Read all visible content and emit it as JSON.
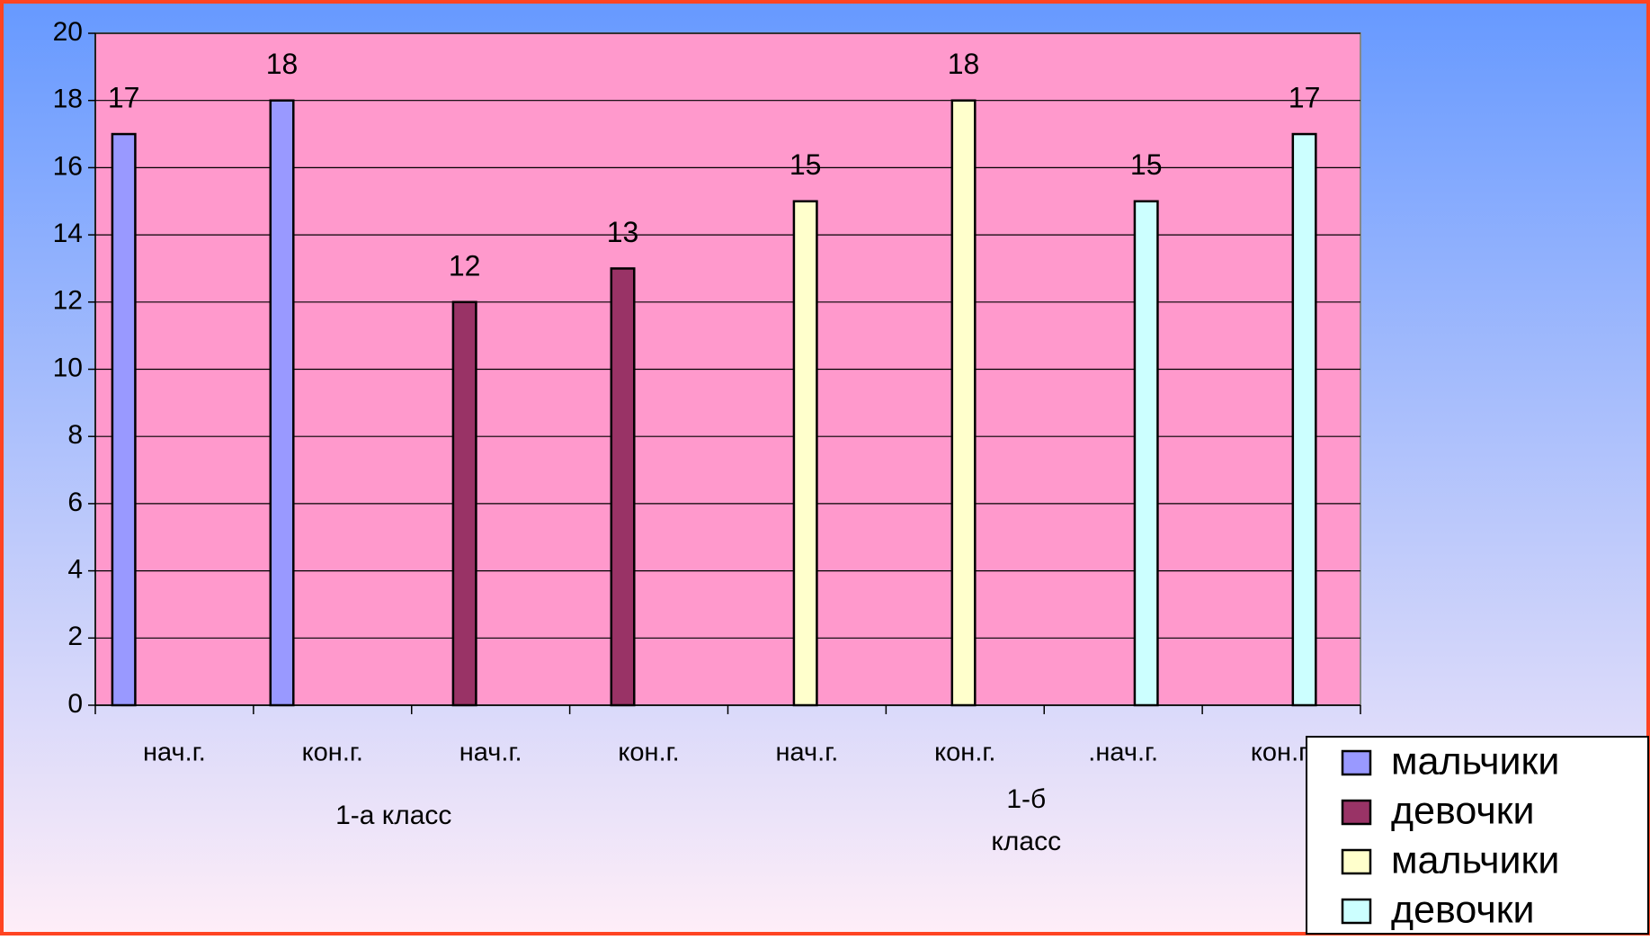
{
  "chart_data": {
    "type": "bar",
    "categories": [
      "нач.г.",
      "кон.г.",
      "нач.г.",
      "кон.г.",
      "нач.г.",
      "кон.г.",
      ".нач.г.",
      "кон.г."
    ],
    "group_labels": [
      [
        "1-а класс"
      ],
      [
        "1-б",
        "класс"
      ]
    ],
    "series": [
      {
        "name": "мальчики",
        "color": "#9999ff",
        "values": [
          17,
          18,
          null,
          null,
          null,
          null,
          null,
          null
        ]
      },
      {
        "name": "девочки",
        "color": "#993366",
        "values": [
          null,
          null,
          12,
          13,
          null,
          null,
          null,
          null
        ]
      },
      {
        "name": "мальчики",
        "color": "#ffffcc",
        "values": [
          null,
          null,
          null,
          null,
          15,
          18,
          null,
          null
        ]
      },
      {
        "name": "девочки",
        "color": "#ccffff",
        "values": [
          null,
          null,
          null,
          null,
          null,
          null,
          15,
          17
        ]
      }
    ],
    "ylim": [
      0,
      20
    ],
    "yticks": [
      0,
      2,
      4,
      6,
      8,
      10,
      12,
      14,
      16,
      18,
      20
    ],
    "grid": true,
    "legend": "bottom-right"
  }
}
